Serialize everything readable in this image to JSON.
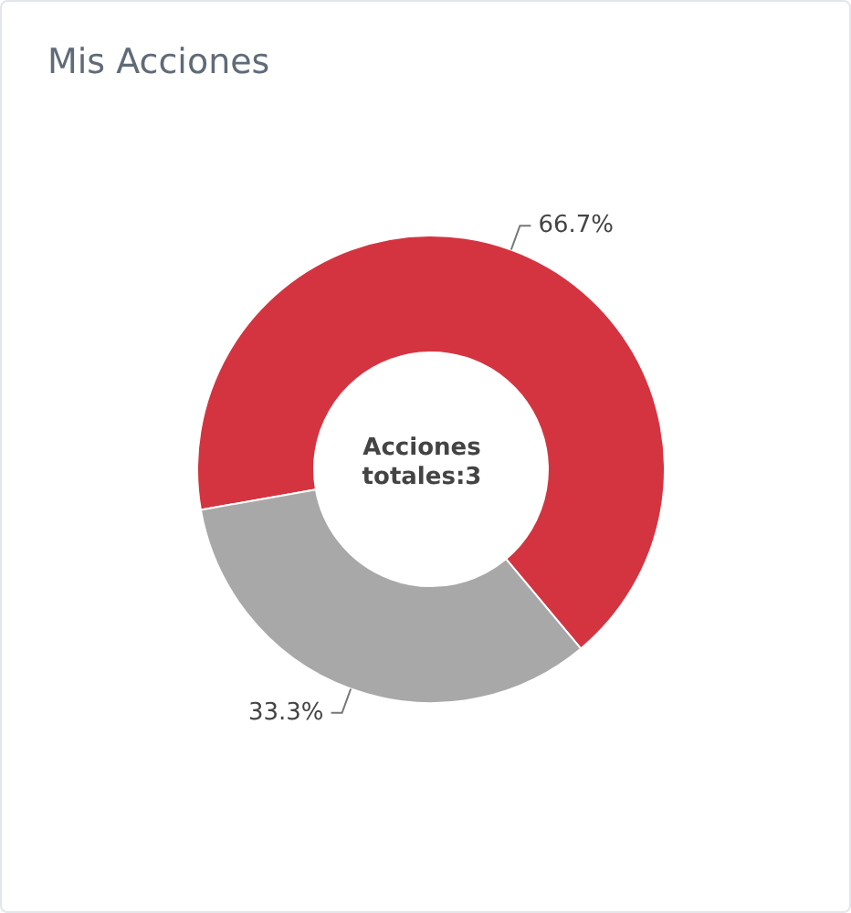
{
  "chart_data": {
    "type": "donut",
    "title": "Mis Acciones",
    "categories": [
      null,
      null
    ],
    "values": [
      66.7,
      33.3
    ],
    "colors": [
      "#d43440",
      "#a8a8a8"
    ],
    "value_labels": [
      "66.7%",
      "33.3%"
    ],
    "annotations": [
      "Acciones totales:3"
    ],
    "legend": false
  }
}
